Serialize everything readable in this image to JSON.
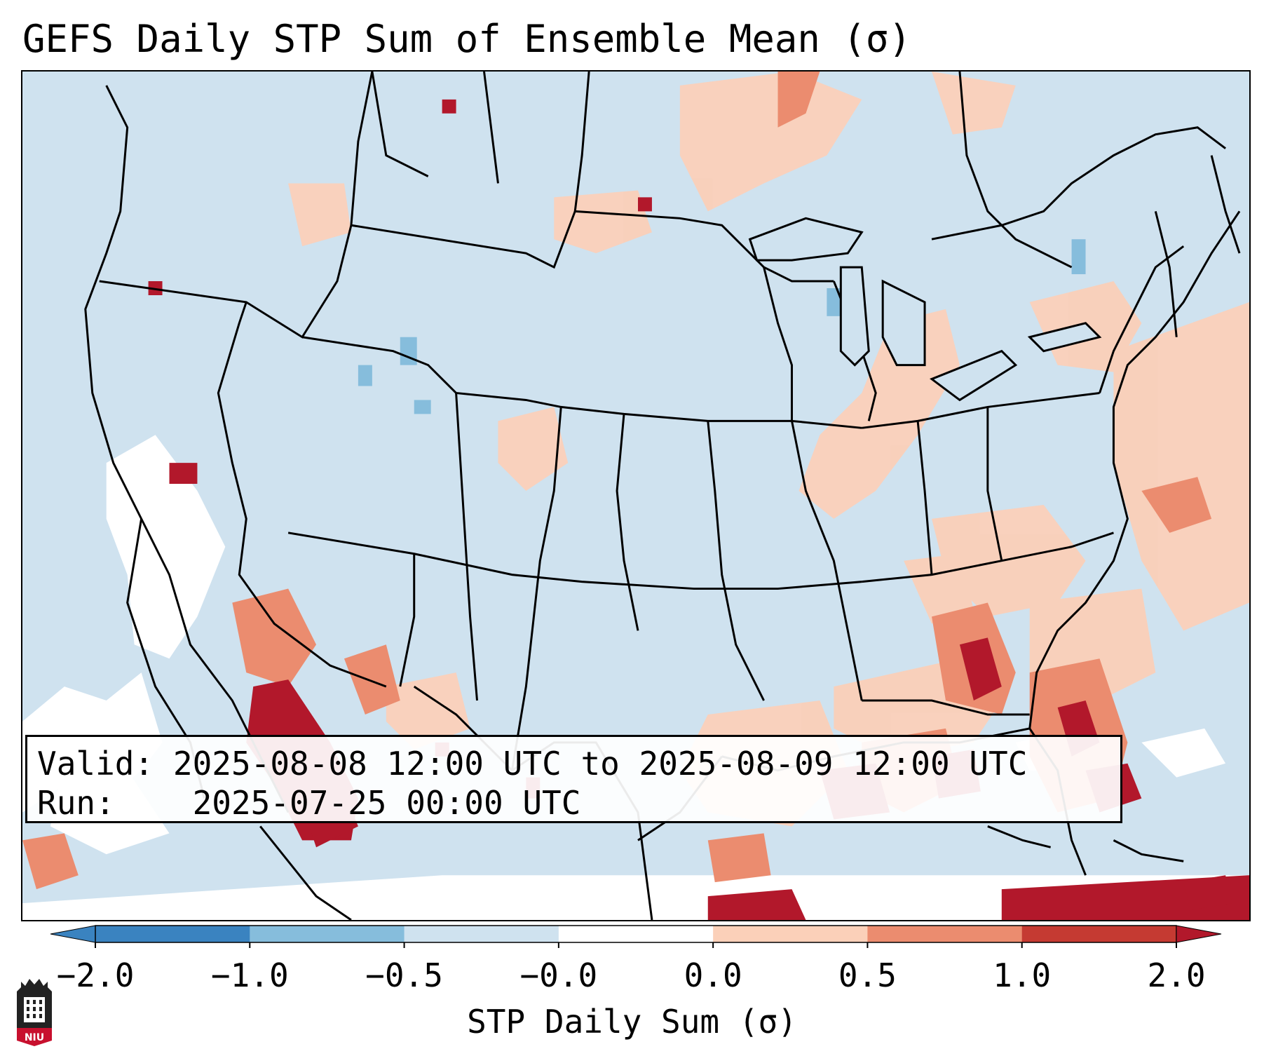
{
  "title": "GEFS Daily STP Sum of Ensemble Mean (σ)",
  "info": {
    "valid_label": "Valid:",
    "valid_value": "2025-08-08 12:00 UTC to 2025-08-09 12:00 UTC",
    "run_label": "Run:",
    "run_value": "2025-07-25 00:00 UTC"
  },
  "colorbar": {
    "label": "STP Daily Sum (σ)",
    "ticks": [
      "−2.0",
      "−1.0",
      "−0.5",
      "−0.0",
      "0.0",
      "0.5",
      "1.0",
      "2.0"
    ],
    "colors": [
      "#3a83c0",
      "#86bddc",
      "#cfe2ef",
      "#ffffff",
      "#fbd0b9",
      "#eb8c6f",
      "#c53a32",
      "#b2182b"
    ]
  },
  "legend_colors": {
    "ocean_background": "#cfe2ef",
    "near_zero": "#ffffff",
    "light_positive": "#fbd0b9",
    "moderate_positive": "#eb8c6f",
    "high_positive": "#c53a32",
    "very_high_positive": "#b2182b",
    "light_negative": "#86bddc"
  },
  "logo": {
    "text": "NIU",
    "icon": "niu-tower-icon"
  }
}
